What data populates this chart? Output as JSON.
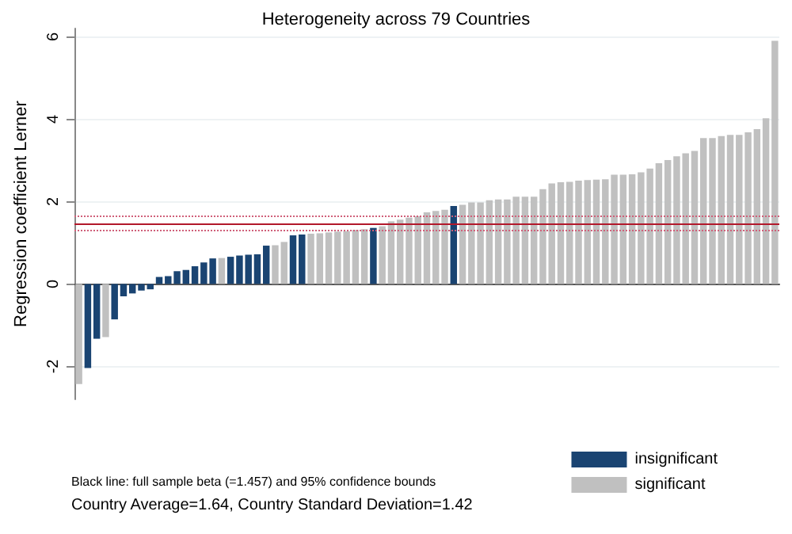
{
  "chart_data": {
    "type": "bar",
    "title": "Heterogeneity across 79 Countries",
    "ylabel": "Regression coefficient Lerner",
    "categories": [
      null,
      null,
      null,
      null,
      null,
      null,
      null,
      null,
      null,
      null,
      null,
      null,
      null,
      null,
      null,
      null,
      null,
      null,
      null,
      null,
      null,
      null,
      null,
      null,
      null,
      null,
      null,
      null,
      null,
      null,
      null,
      null,
      null,
      null,
      null,
      null,
      null,
      null,
      null,
      null,
      null,
      null,
      null,
      null,
      null,
      null,
      null,
      null,
      null,
      null,
      null,
      null,
      null,
      null,
      null,
      null,
      null,
      null,
      null,
      null,
      null,
      null,
      null,
      null,
      null,
      null,
      null,
      null,
      null,
      null,
      null,
      null,
      null,
      null,
      null,
      null,
      null,
      null,
      null
    ],
    "series": [
      {
        "name": "insignificant",
        "color": "#1a4472",
        "values": [
          null,
          -2.04,
          -1.33,
          null,
          -0.86,
          -0.3,
          -0.23,
          -0.16,
          -0.13,
          0.17,
          0.19,
          0.31,
          0.34,
          0.43,
          0.52,
          0.62,
          null,
          0.66,
          0.69,
          0.71,
          0.72,
          0.93,
          null,
          null,
          1.18,
          1.2,
          null,
          null,
          null,
          null,
          null,
          null,
          null,
          1.36,
          null,
          null,
          null,
          null,
          null,
          null,
          null,
          null,
          1.89,
          null,
          null,
          null,
          null,
          null,
          null,
          null,
          null,
          null,
          null,
          null,
          null,
          null,
          null,
          null,
          null,
          null,
          null,
          null,
          null,
          null,
          null,
          null,
          null,
          null,
          null,
          null,
          null,
          null,
          null,
          null,
          null,
          null,
          null,
          null,
          null
        ]
      },
      {
        "name": "significant",
        "color": "#c0c0c0",
        "values": [
          -2.43,
          null,
          null,
          -1.29,
          null,
          null,
          null,
          null,
          null,
          null,
          null,
          null,
          null,
          null,
          null,
          null,
          0.63,
          null,
          null,
          null,
          null,
          null,
          0.94,
          1.02,
          null,
          null,
          1.22,
          1.23,
          1.25,
          1.27,
          1.28,
          1.31,
          1.33,
          null,
          1.4,
          1.52,
          1.56,
          1.61,
          1.64,
          1.74,
          1.77,
          1.8,
          null,
          1.92,
          1.98,
          1.98,
          2.03,
          2.05,
          2.05,
          2.12,
          2.12,
          2.12,
          2.3,
          2.44,
          2.47,
          2.48,
          2.51,
          2.52,
          2.53,
          2.54,
          2.65,
          2.65,
          2.66,
          2.71,
          2.8,
          2.93,
          3.01,
          3.1,
          3.17,
          3.23,
          3.54,
          3.54,
          3.59,
          3.62,
          3.62,
          3.68,
          3.76,
          4.02,
          5.9
        ]
      }
    ],
    "ylim": [
      -2.8,
      6.2
    ],
    "yticks": [
      -2,
      0,
      2,
      4,
      6
    ],
    "grid": "y",
    "legend": "bottom right",
    "ref_lines": [
      {
        "axis": "y",
        "value": 1.457,
        "color": "#b2182b",
        "line_style": "solid"
      },
      {
        "axis": "y",
        "value": 1.65,
        "color": "#d0607a",
        "line_style": "dotted"
      },
      {
        "axis": "y",
        "value": 1.29,
        "color": "#d0607a",
        "line_style": "dotted"
      }
    ],
    "annotations": [
      "Black line: full sample beta (=1.457) and 95% confidence bounds",
      "Country Average=1.64, Country Standard Deviation=1.42"
    ]
  }
}
